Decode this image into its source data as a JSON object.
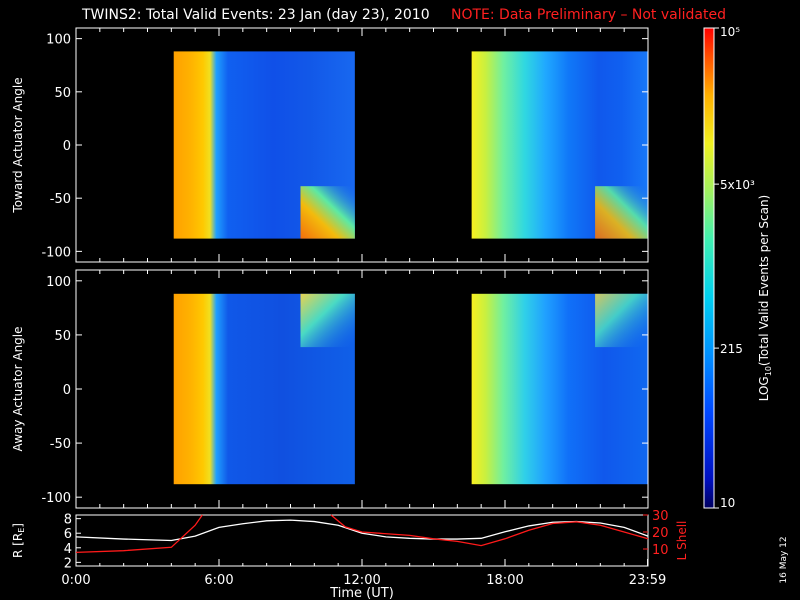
{
  "title": "TWINS2: Total Valid Events: 23 Jan (day  23), 2010",
  "note": "NOTE: Data Preliminary – Not validated",
  "date_stamp": "16 May 12",
  "colors": {
    "background": "#000000",
    "axis": "#ffffff",
    "note": "#ff2020",
    "l_shell_line": "#ff1a1a",
    "r_line": "#ffffff"
  },
  "chart_data": [
    {
      "type": "heatmap",
      "panel": "top",
      "ylabel": "Toward Actuator Angle",
      "ylim": [
        -110,
        110
      ],
      "yticks": [
        -100,
        -50,
        0,
        50,
        100
      ],
      "xlim": [
        0,
        24
      ],
      "data_blocks": [
        {
          "start_hour": 4.1,
          "end_hour": 11.7,
          "angle_range": [
            -88,
            88
          ]
        },
        {
          "start_hour": 16.6,
          "end_hour": 24.0,
          "angle_range": [
            -88,
            88
          ]
        }
      ]
    },
    {
      "type": "heatmap",
      "panel": "middle",
      "ylabel": "Away Actuator Angle",
      "ylim": [
        -110,
        110
      ],
      "yticks": [
        -100,
        -50,
        0,
        50,
        100
      ],
      "xlim": [
        0,
        24
      ],
      "data_blocks": [
        {
          "start_hour": 4.1,
          "end_hour": 11.7,
          "angle_range": [
            -88,
            88
          ]
        },
        {
          "start_hour": 16.6,
          "end_hour": 24.0,
          "angle_range": [
            -88,
            88
          ]
        }
      ]
    },
    {
      "type": "line",
      "panel": "bottom",
      "xlabel": "Time (UT)",
      "xticks": [
        "0:00",
        "6:00",
        "12:00",
        "18:00",
        "23:59"
      ],
      "xtick_hours": [
        0,
        6,
        12,
        18,
        23.98
      ],
      "left_axis": {
        "label": "R [RE]",
        "label_main": "R [R",
        "label_sub": "E",
        "label_end": "]",
        "ticks": [
          2,
          4,
          6,
          8
        ],
        "ylim": [
          1.5,
          8.5
        ]
      },
      "right_axis": {
        "label": "L Shell",
        "ticks": [
          10,
          20,
          30
        ],
        "tick_text": [
          "10",
          "20",
          "30"
        ],
        "ylim": [
          0,
          30
        ]
      },
      "series": [
        {
          "name": "R",
          "hours": [
            0,
            2,
            4,
            5,
            6,
            7,
            8,
            9,
            10,
            11,
            12,
            13,
            14,
            15,
            16,
            17,
            18,
            19,
            20,
            21,
            22,
            23,
            24
          ],
          "values": [
            5.5,
            5.2,
            5.0,
            5.6,
            6.8,
            7.3,
            7.7,
            7.8,
            7.6,
            7.1,
            6.0,
            5.5,
            5.3,
            5.2,
            5.2,
            5.3,
            6.2,
            7.0,
            7.5,
            7.6,
            7.4,
            6.8,
            5.6
          ]
        },
        {
          "name": "L Shell",
          "hours": [
            0,
            2,
            4,
            5,
            5.3
          ],
          "values": [
            8,
            9,
            11,
            24,
            30
          ],
          "hours_b": [
            10.7,
            11.3,
            12,
            14,
            15,
            16,
            17,
            18,
            19,
            20,
            21,
            22,
            23,
            24
          ],
          "values_b": [
            30,
            23,
            20,
            18,
            16,
            14.5,
            12,
            16,
            21,
            25,
            26,
            24,
            20,
            16
          ]
        }
      ]
    },
    {
      "type": "heatmap",
      "panel": "colorbar",
      "label_pre": "LOG",
      "label_sub": "10",
      "label_post": "(Total Valid Events per Scan)",
      "tick_values": [
        10,
        215,
        5000,
        100000
      ],
      "tick_labels": [
        "10",
        "215",
        "5x10³",
        "10⁵"
      ],
      "vmin": 10,
      "vmax": 100000,
      "scale": "log"
    }
  ]
}
